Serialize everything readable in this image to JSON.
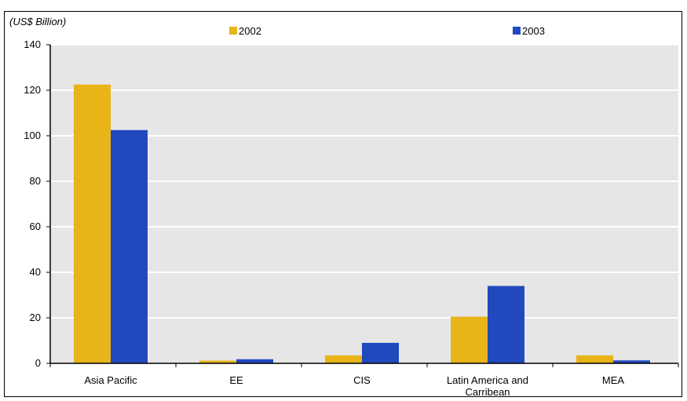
{
  "chart_data": {
    "type": "bar",
    "title": "",
    "unit_label": "(US$ Billion)",
    "xlabel": "",
    "ylabel": "",
    "categories": [
      "Asia Pacific",
      "EE",
      "CIS",
      "Latin America and Carribean",
      "MEA"
    ],
    "series": [
      {
        "name": "2002",
        "color": "#E8B418",
        "values": [
          122.5,
          1.2,
          3.5,
          20.5,
          3.5
        ]
      },
      {
        "name": "2003",
        "color": "#2149BE",
        "values": [
          102.5,
          1.8,
          9.0,
          34.0,
          1.3
        ]
      }
    ],
    "ylim": [
      0,
      140
    ],
    "yticks": [
      0,
      20,
      40,
      60,
      80,
      100,
      120,
      140
    ],
    "grid": true,
    "plot_background": "#E6E6E6",
    "grid_color": "#FFFFFF",
    "legend_position": "top"
  }
}
